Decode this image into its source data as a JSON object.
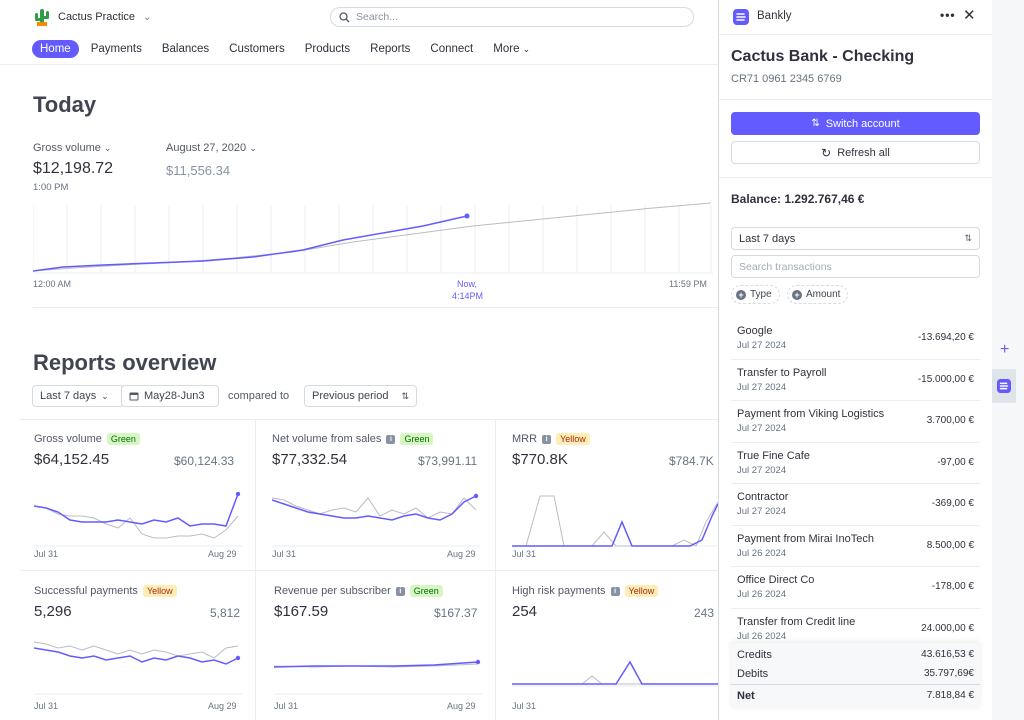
{
  "account": {
    "name": "Cactus Practice"
  },
  "search": {
    "placeholder": "Search..."
  },
  "nav": [
    "Home",
    "Payments",
    "Balances",
    "Customers",
    "Products",
    "Reports",
    "Connect",
    "More"
  ],
  "today": {
    "title": "Today",
    "gross_label": "Gross volume",
    "gross_value": "$12,198.72",
    "gross_time": "1:00 PM",
    "compare_date": "August 27, 2020",
    "compare_value": "$11,556.34",
    "axis_start": "12:00 AM",
    "axis_now_1": "Now,",
    "axis_now_2": "4:14PM",
    "axis_end": "11:59 PM"
  },
  "reports": {
    "title": "Reports overview",
    "range": "Last 7 days",
    "dates": "May28-Jun3",
    "compared_to": "compared to",
    "period": "Previous period",
    "cards": [
      {
        "title": "Gross volume",
        "badge": "Green",
        "value": "$64,152.45",
        "compare": "$60,124.33",
        "start": "Jul 31",
        "end": "Aug 29"
      },
      {
        "title": "Net volume from sales",
        "badge": "Green",
        "value": "$77,332.54",
        "compare": "$73,991.11",
        "start": "Jul 31",
        "end": "Aug 29"
      },
      {
        "title": "MRR",
        "badge": "Yellow",
        "value": "$770.8K",
        "compare": "$784.7K",
        "start": "Jul 31",
        "end": ""
      },
      {
        "title": "Successful payments",
        "badge": "Yellow",
        "value": "5,296",
        "compare": "5,812",
        "start": "Jul 31",
        "end": "Aug 29"
      },
      {
        "title": "Revenue per subscriber",
        "badge": "Green",
        "value": "$167.59",
        "compare": "$167.37",
        "start": "Jul 31",
        "end": "Aug 29"
      },
      {
        "title": "High risk payments",
        "badge": "Yellow",
        "value": "254",
        "compare": "243",
        "start": "Jul 31",
        "end": ""
      }
    ]
  },
  "panel": {
    "app_name": "Bankly",
    "more": "•••",
    "close": "✕",
    "account_title": "Cactus Bank - Checking",
    "iban": "CR71 0961 2345 6769",
    "switch_label": "Switch account",
    "refresh_label": "Refresh all",
    "balance": "Balance: 1.292.767,46  €",
    "period": "Last 7 days",
    "search_placeholder": "Search transactions",
    "chip_type": "Type",
    "chip_amount": "Amount",
    "transactions": [
      {
        "name": "Google",
        "date": "Jul 27 2024",
        "amount": "-13.694,20 €"
      },
      {
        "name": "Transfer to Payroll",
        "date": "Jul 27 2024",
        "amount": "-15.000,00 €"
      },
      {
        "name": "Payment from Viking Logistics",
        "date": "Jul 27 2024",
        "amount": "3.700,00 €"
      },
      {
        "name": "True Fine Cafe",
        "date": "Jul 27 2024",
        "amount": "-97,00 €"
      },
      {
        "name": "Contractor",
        "date": "Jul 27 2024",
        "amount": "-369,00 €"
      },
      {
        "name": "Payment from Mirai InoTech",
        "date": "Jul 26 2024",
        "amount": "8.500,00 €"
      },
      {
        "name": "Office Direct Co",
        "date": "Jul 26 2024",
        "amount": "-178,00 €"
      },
      {
        "name": "Transfer from Credit line",
        "date": "Jul 26 2024",
        "amount": "24.000,00 €"
      }
    ],
    "summary": {
      "credits_label": "Credits",
      "credits": "43.616,53 €",
      "debits_label": "Debits",
      "debits": "35.797,69€",
      "net_label": "Net",
      "net": "7.818,84 €"
    }
  },
  "colors": {
    "accent": "#635bff",
    "line_compare": "#b8bcc4",
    "green_badge": "#d7f7c2",
    "yellow_badge": "#fcedb9"
  }
}
